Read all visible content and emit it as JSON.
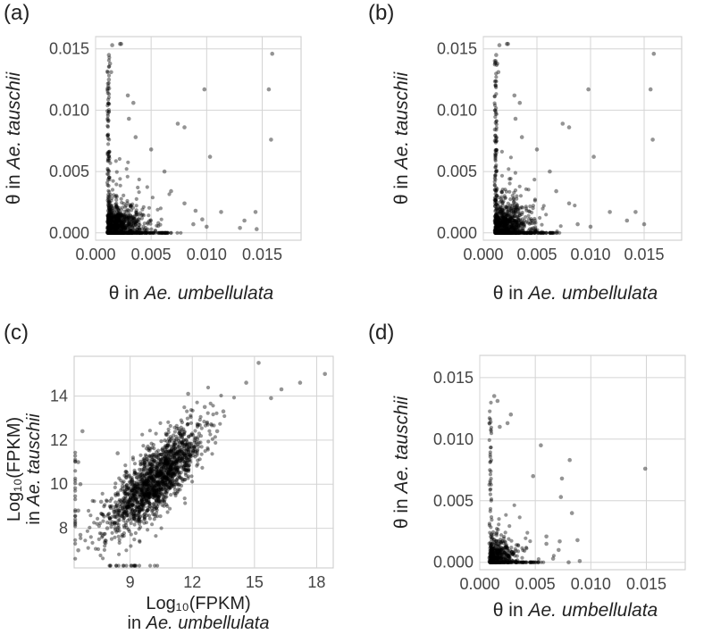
{
  "chart_data": [
    {
      "id": "a",
      "panel_label": "(a)",
      "type": "scatter",
      "xlabel_prefix": "θ in ",
      "xlabel_species": "Ae. umbellulata",
      "ylabel_prefix": "θ in ",
      "ylabel_species": "Ae. tauschii",
      "xlim": [
        0.0,
        0.0185
      ],
      "ylim": [
        -0.0006,
        0.016
      ],
      "xticks": [
        "0.000",
        "0.005",
        "0.010",
        "0.015"
      ],
      "yticks": [
        "0.000",
        "0.005",
        "0.010",
        "0.015"
      ],
      "xtick_values": [
        0.0,
        0.005,
        0.01,
        0.015
      ],
      "ytick_values": [
        0.0,
        0.005,
        0.01,
        0.015
      ],
      "points": [
        [
          0.0015,
          0.0153
        ],
        [
          0.0022,
          0.0154
        ],
        [
          0.0023,
          0.0154
        ],
        [
          0.0159,
          0.0146
        ],
        [
          0.0156,
          0.0117
        ],
        [
          0.0158,
          0.0076
        ],
        [
          0.0098,
          0.0117
        ],
        [
          0.0074,
          0.0089
        ],
        [
          0.008,
          0.0086
        ],
        [
          0.0103,
          0.0062
        ],
        [
          0.0029,
          0.0112
        ],
        [
          0.0034,
          0.0106
        ],
        [
          0.0012,
          0.0145
        ],
        [
          0.0013,
          0.0138
        ],
        [
          0.0014,
          0.0131
        ],
        [
          0.0012,
          0.0125
        ],
        [
          0.0011,
          0.0118
        ],
        [
          0.003,
          0.0093
        ],
        [
          0.0036,
          0.0078
        ],
        [
          0.005,
          0.0068
        ],
        [
          0.0062,
          0.005
        ],
        [
          0.0068,
          0.0034
        ],
        [
          0.008,
          0.0024
        ],
        [
          0.009,
          0.0018
        ],
        [
          0.0113,
          0.0017
        ],
        [
          0.0144,
          0.0017
        ],
        [
          0.0134,
          0.001
        ],
        [
          0.013,
          0.0004
        ],
        [
          0.0145,
          0.0003
        ],
        [
          0.01,
          0.0005
        ],
        [
          0.0088,
          0.0007
        ],
        [
          0.0096,
          0.0011
        ]
      ],
      "dense_cluster": {
        "x_min": 0.0011,
        "x_mode": 0.0013,
        "x_spread": 0.0018,
        "y_mode": 0.0004,
        "y_spread": 0.0016,
        "count": 900
      },
      "vertical_spine": {
        "x": 0.00115,
        "y_min": 0.0,
        "y_max": 0.0145,
        "count": 120
      }
    },
    {
      "id": "b",
      "panel_label": "(b)",
      "type": "scatter",
      "xlabel_prefix": "θ in ",
      "xlabel_species": "Ae. umbellulata",
      "ylabel_prefix": "θ in ",
      "ylabel_species": "Ae. tauschii",
      "xlim": [
        0.0,
        0.0185
      ],
      "ylim": [
        -0.0006,
        0.016
      ],
      "xticks": [
        "0.000",
        "0.005",
        "0.010",
        "0.015"
      ],
      "yticks": [
        "0.000",
        "0.005",
        "0.010",
        "0.015"
      ],
      "xtick_values": [
        0.0,
        0.005,
        0.01,
        0.015
      ],
      "ytick_values": [
        0.0,
        0.005,
        0.01,
        0.015
      ],
      "points": [
        [
          0.0015,
          0.0153
        ],
        [
          0.0022,
          0.0154
        ],
        [
          0.0023,
          0.0154
        ],
        [
          0.0159,
          0.0146
        ],
        [
          0.0156,
          0.0117
        ],
        [
          0.0158,
          0.0076
        ],
        [
          0.0098,
          0.0117
        ],
        [
          0.0074,
          0.0089
        ],
        [
          0.008,
          0.0086
        ],
        [
          0.0103,
          0.0062
        ],
        [
          0.0029,
          0.0112
        ],
        [
          0.0034,
          0.0106
        ],
        [
          0.0012,
          0.0145
        ],
        [
          0.0013,
          0.0138
        ],
        [
          0.0014,
          0.0131
        ],
        [
          0.003,
          0.0093
        ],
        [
          0.0036,
          0.0078
        ],
        [
          0.005,
          0.0068
        ],
        [
          0.0062,
          0.005
        ],
        [
          0.0068,
          0.0034
        ],
        [
          0.008,
          0.0024
        ],
        [
          0.0118,
          0.0017
        ],
        [
          0.0142,
          0.0017
        ],
        [
          0.0134,
          0.001
        ],
        [
          0.015,
          0.0007
        ],
        [
          0.01,
          0.0005
        ],
        [
          0.0088,
          0.0007
        ]
      ],
      "dense_cluster": {
        "x_min": 0.0011,
        "x_mode": 0.0013,
        "x_spread": 0.0018,
        "y_mode": 0.0004,
        "y_spread": 0.0016,
        "count": 850
      },
      "vertical_spine": {
        "x": 0.00115,
        "y_min": 0.0,
        "y_max": 0.0145,
        "count": 120
      }
    },
    {
      "id": "c",
      "panel_label": "(c)",
      "type": "scatter",
      "xlabel_main": "Log₁₀(FPKM)",
      "xlabel_prefix": "in ",
      "xlabel_species": "Ae. umbellulata",
      "ylabel_main": "Log₁₀(FPKM)",
      "ylabel_prefix": "in ",
      "ylabel_species": "Ae. tauschii",
      "xlim": [
        6.3,
        18.8
      ],
      "ylim": [
        6.2,
        15.8
      ],
      "xticks": [
        "9",
        "12",
        "15",
        "18"
      ],
      "yticks": [
        "8",
        "10",
        "12",
        "14"
      ],
      "xtick_values": [
        9,
        12,
        15,
        18
      ],
      "ytick_values": [
        8,
        10,
        12,
        14
      ],
      "points": [
        [
          18.4,
          15.0
        ],
        [
          16.3,
          14.3
        ],
        [
          15.8,
          13.9
        ],
        [
          17.2,
          14.6
        ],
        [
          15.2,
          15.5
        ],
        [
          14.6,
          14.6
        ],
        [
          13.5,
          13.3
        ],
        [
          6.7,
          12.4
        ],
        [
          6.5,
          11.0
        ],
        [
          6.6,
          10.0
        ],
        [
          6.5,
          8.8
        ],
        [
          6.6,
          7.7
        ],
        [
          6.5,
          7.0
        ],
        [
          7.6,
          9.2
        ],
        [
          7.9,
          8.0
        ],
        [
          12.6,
          13.5
        ],
        [
          11.8,
          14.1
        ],
        [
          13.2,
          12.4
        ],
        [
          8.4,
          11.4
        ]
      ],
      "correlated_cloud": {
        "x_mean": 10.2,
        "x_sd": 1.15,
        "y_intercept": 1.6,
        "slope": 0.84,
        "y_sd": 0.75,
        "count": 1600
      },
      "left_edge_column": {
        "x": 6.35,
        "y_min": 6.6,
        "y_max": 11.5,
        "count": 25
      },
      "bottom_row": {
        "y": 6.3,
        "x_min": 8.0,
        "x_max": 10.5,
        "count": 20
      }
    },
    {
      "id": "d",
      "panel_label": "(d)",
      "type": "scatter",
      "xlabel_prefix": "θ in ",
      "xlabel_species": "Ae. umbellulata",
      "ylabel_prefix": "θ in ",
      "ylabel_species": "Ae. tauschii",
      "xlim": [
        0.0,
        0.0185
      ],
      "ylim": [
        -0.0006,
        0.0168
      ],
      "xticks": [
        "0.000",
        "0.005",
        "0.010",
        "0.015"
      ],
      "yticks": [
        "0.000",
        "0.005",
        "0.010",
        "0.015"
      ],
      "xtick_values": [
        0.0,
        0.005,
        0.01,
        0.015
      ],
      "ytick_values": [
        0.0,
        0.005,
        0.01,
        0.015
      ],
      "points": [
        [
          0.0013,
          0.0135
        ],
        [
          0.0016,
          0.0131
        ],
        [
          0.0028,
          0.012
        ],
        [
          0.0025,
          0.0113
        ],
        [
          0.0018,
          0.011
        ],
        [
          0.0149,
          0.0076
        ],
        [
          0.0081,
          0.0083
        ],
        [
          0.0055,
          0.0095
        ],
        [
          0.0048,
          0.007
        ],
        [
          0.0074,
          0.0068
        ],
        [
          0.0073,
          0.0053
        ],
        [
          0.0083,
          0.004
        ],
        [
          0.0088,
          0.0018
        ],
        [
          0.0072,
          0.0017
        ],
        [
          0.006,
          0.0021
        ],
        [
          0.0066,
          0.0003
        ],
        [
          0.009,
          0.0001
        ],
        [
          0.006,
          0.0015
        ],
        [
          0.0071,
          0.001
        ],
        [
          0.008,
          0.0
        ]
      ],
      "dense_cluster": {
        "x_min": 0.0009,
        "x_mode": 0.0011,
        "x_spread": 0.0015,
        "y_mode": 0.0005,
        "y_spread": 0.0013,
        "count": 420
      },
      "vertical_spine": {
        "x": 0.00095,
        "y_min": 0.0,
        "y_max": 0.013,
        "count": 60
      }
    }
  ]
}
